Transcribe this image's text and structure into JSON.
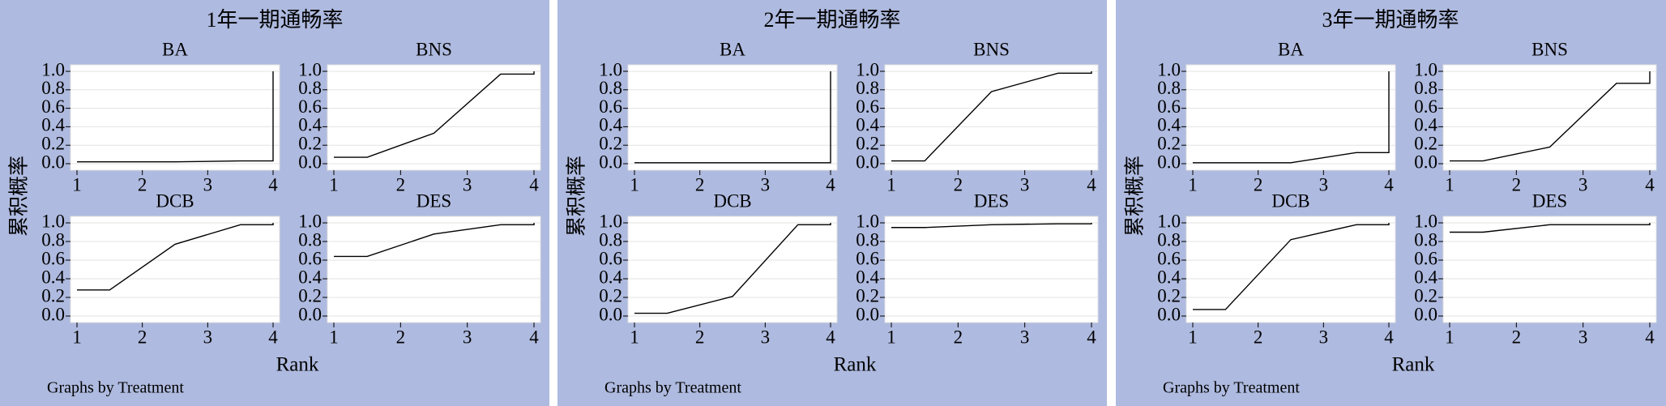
{
  "chart_data": [
    {
      "type": "line",
      "title": "1年一期通畅率",
      "xlabel": "Rank",
      "ylabel": "累积概率",
      "note": "Graphs by Treatment",
      "xlim": [
        1,
        4
      ],
      "ylim": [
        0,
        1
      ],
      "xticks": [
        1,
        2,
        3,
        4
      ],
      "yticks": [
        {
          "value": 0,
          "label": "0.0"
        },
        0.2,
        0.4,
        0.6,
        0.8,
        {
          "value": 1,
          "label": "1.0"
        }
      ],
      "grid": true,
      "color": "#000000",
      "background": "#aebadf",
      "panels": [
        {
          "title": "BA",
          "x": [
            1,
            1.5,
            2.5,
            3.5,
            4,
            4
          ],
          "values": [
            0.02,
            0.02,
            0.02,
            0.03,
            0.03,
            1
          ]
        },
        {
          "title": "BNS",
          "x": [
            1,
            1.5,
            2.5,
            3.5,
            4,
            4
          ],
          "values": [
            0.07,
            0.07,
            0.33,
            0.97,
            0.97,
            1
          ]
        },
        {
          "title": "DCB",
          "x": [
            1,
            1.5,
            2.5,
            3.5,
            4,
            4
          ],
          "values": [
            0.28,
            0.28,
            0.77,
            0.98,
            0.98,
            1
          ]
        },
        {
          "title": "DES",
          "x": [
            1,
            1.5,
            2.5,
            3.5,
            4,
            4
          ],
          "values": [
            0.64,
            0.64,
            0.88,
            0.98,
            0.98,
            1
          ]
        }
      ]
    },
    {
      "type": "line",
      "title": "2年一期通畅率",
      "xlabel": "Rank",
      "ylabel": "累积概率",
      "note": "Graphs by Treatment",
      "xlim": [
        1,
        4
      ],
      "ylim": [
        0,
        1
      ],
      "xticks": [
        1,
        2,
        3,
        4
      ],
      "yticks": [
        {
          "value": 0,
          "label": "0.0"
        },
        0.2,
        0.4,
        0.6,
        0.8,
        {
          "value": 1,
          "label": "1.0"
        }
      ],
      "grid": true,
      "color": "#000000",
      "background": "#aebadf",
      "panels": [
        {
          "title": "BA",
          "x": [
            1,
            1.5,
            2.5,
            3.5,
            4,
            4
          ],
          "values": [
            0.01,
            0.01,
            0.01,
            0.01,
            0.01,
            1
          ]
        },
        {
          "title": "BNS",
          "x": [
            1,
            1.5,
            2.5,
            3.5,
            4,
            4
          ],
          "values": [
            0.03,
            0.03,
            0.78,
            0.98,
            0.98,
            1
          ]
        },
        {
          "title": "DCB",
          "x": [
            1,
            1.5,
            2.5,
            3.5,
            4,
            4
          ],
          "values": [
            0.03,
            0.03,
            0.21,
            0.98,
            0.98,
            1
          ]
        },
        {
          "title": "DES",
          "x": [
            1,
            1.5,
            2.5,
            3.5,
            4,
            4
          ],
          "values": [
            0.95,
            0.95,
            0.98,
            0.99,
            0.99,
            1
          ]
        }
      ]
    },
    {
      "type": "line",
      "title": "3年一期通畅率",
      "xlabel": "Rank",
      "ylabel": "累积概率",
      "note": "Graphs by Treatment",
      "xlim": [
        1,
        4
      ],
      "ylim": [
        0,
        1
      ],
      "xticks": [
        1,
        2,
        3,
        4
      ],
      "yticks": [
        {
          "value": 0,
          "label": "0.0"
        },
        0.2,
        0.4,
        0.6,
        0.8,
        {
          "value": 1,
          "label": "1.0"
        }
      ],
      "grid": true,
      "color": "#000000",
      "background": "#aebadf",
      "panels": [
        {
          "title": "BA",
          "x": [
            1,
            1.5,
            2.5,
            3.5,
            4,
            4
          ],
          "values": [
            0.01,
            0.01,
            0.01,
            0.12,
            0.12,
            1
          ]
        },
        {
          "title": "BNS",
          "x": [
            1,
            1.5,
            2.5,
            3.5,
            4,
            4
          ],
          "values": [
            0.03,
            0.03,
            0.18,
            0.87,
            0.87,
            1
          ]
        },
        {
          "title": "DCB",
          "x": [
            1,
            1.5,
            2.5,
            3.5,
            4,
            4
          ],
          "values": [
            0.07,
            0.07,
            0.82,
            0.98,
            0.98,
            1
          ]
        },
        {
          "title": "DES",
          "x": [
            1,
            1.5,
            2.5,
            3.5,
            4,
            4
          ],
          "values": [
            0.9,
            0.9,
            0.98,
            0.98,
            0.98,
            1
          ]
        }
      ]
    }
  ]
}
